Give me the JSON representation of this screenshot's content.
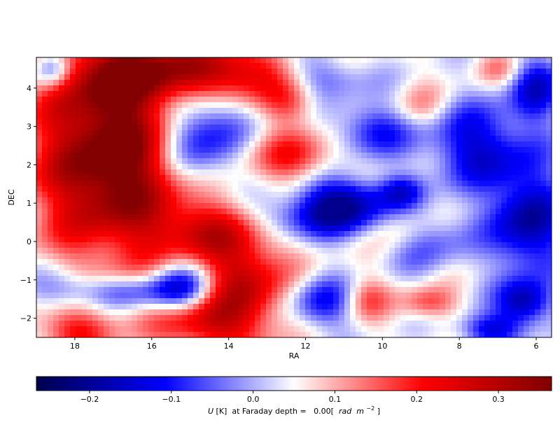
{
  "chart_data": {
    "type": "heatmap",
    "xlabel": "RA",
    "ylabel": "DEC",
    "x_range": [
      19.0,
      5.6
    ],
    "y_range": [
      -2.5,
      4.8
    ],
    "x_ticks": [
      18,
      16,
      14,
      12,
      10,
      8,
      6
    ],
    "y_ticks": [
      -2,
      -1,
      0,
      1,
      2,
      3,
      4
    ],
    "x_tick_labels": [
      "18",
      "16",
      "14",
      "12",
      "10",
      "8",
      "6"
    ],
    "y_tick_labels": [
      "−2",
      "−1",
      "0",
      "1",
      "2",
      "3",
      "4"
    ],
    "colormap": "seismic",
    "value_range": [
      -0.265,
      0.365
    ],
    "colorbar_ticks": [
      -0.2,
      -0.1,
      0.0,
      0.1,
      0.2,
      0.3
    ],
    "colorbar_tick_labels": [
      "−0.2",
      "−0.1",
      "0.0",
      "0.1",
      "0.2",
      "0.3"
    ],
    "colorbar_label": {
      "prefix": "U",
      "unit": "[K]",
      "middle": " at Faraday depth =   0.00[ ",
      "rad": "rad",
      "m": " m",
      "exp": "−2",
      "suffix": "]"
    },
    "field_blobs": [
      {
        "ra": 17.0,
        "dec": 2.2,
        "amp": 0.42,
        "sra": 1.4,
        "sdec": 1.8
      },
      {
        "ra": 16.0,
        "dec": 4.4,
        "amp": 0.25,
        "sra": 1.6,
        "sdec": 0.6
      },
      {
        "ra": 13.8,
        "dec": 4.4,
        "amp": 0.2,
        "sra": 1.0,
        "sdec": 0.5
      },
      {
        "ra": 14.6,
        "dec": 0.3,
        "amp": 0.18,
        "sra": 1.0,
        "sdec": 0.6
      },
      {
        "ra": 13.6,
        "dec": -1.2,
        "amp": 0.26,
        "sra": 0.8,
        "sdec": 1.0
      },
      {
        "ra": 14.8,
        "dec": -2.1,
        "amp": 0.2,
        "sra": 0.8,
        "sdec": 0.5
      },
      {
        "ra": 12.3,
        "dec": 2.2,
        "amp": 0.16,
        "sra": 0.9,
        "sdec": 0.5
      },
      {
        "ra": 12.4,
        "dec": 3.6,
        "amp": 0.12,
        "sra": 0.5,
        "sdec": 0.4
      },
      {
        "ra": 18.0,
        "dec": -2.3,
        "amp": 0.16,
        "sra": 0.8,
        "sdec": 0.4
      },
      {
        "ra": 9.5,
        "dec": 0.3,
        "amp": 0.08,
        "sra": 0.5,
        "sdec": 0.4
      },
      {
        "ra": 10.4,
        "dec": -1.5,
        "amp": 0.12,
        "sra": 0.4,
        "sdec": 0.4
      },
      {
        "ra": 8.8,
        "dec": -1.6,
        "amp": 0.14,
        "sra": 0.5,
        "sdec": 0.3
      },
      {
        "ra": 9.0,
        "dec": 3.5,
        "amp": 0.08,
        "sra": 0.5,
        "sdec": 0.4
      },
      {
        "ra": 7.0,
        "dec": 4.5,
        "amp": 0.08,
        "sra": 0.4,
        "sdec": 0.3
      },
      {
        "ra": 14.8,
        "dec": 2.8,
        "amp": -0.28,
        "sra": 0.8,
        "sdec": 1.0
      },
      {
        "ra": 11.0,
        "dec": 1.0,
        "amp": -0.3,
        "sra": 0.8,
        "sdec": 0.5
      },
      {
        "ra": 12.3,
        "dec": 0.6,
        "amp": -0.14,
        "sra": 0.9,
        "sdec": 0.4
      },
      {
        "ra": 18.6,
        "dec": 4.5,
        "amp": -0.22,
        "sra": 0.35,
        "sdec": 0.35
      },
      {
        "ra": 10.3,
        "dec": 2.9,
        "amp": -0.18,
        "sra": 0.7,
        "sdec": 0.5
      },
      {
        "ra": 11.5,
        "dec": 4.3,
        "amp": -0.12,
        "sra": 0.8,
        "sdec": 0.4
      },
      {
        "ra": 7.5,
        "dec": 2.5,
        "amp": -0.22,
        "sra": 1.0,
        "sdec": 0.8
      },
      {
        "ra": 6.0,
        "dec": 4.0,
        "amp": -0.2,
        "sra": 0.5,
        "sdec": 0.6
      },
      {
        "ra": 6.2,
        "dec": 0.5,
        "amp": -0.28,
        "sra": 0.7,
        "sdec": 1.0
      },
      {
        "ra": 6.3,
        "dec": -1.6,
        "amp": -0.25,
        "sra": 0.5,
        "sdec": 0.4
      },
      {
        "ra": 16.5,
        "dec": -1.3,
        "amp": -0.14,
        "sra": 1.2,
        "sdec": 0.3
      },
      {
        "ra": 15.2,
        "dec": -1.2,
        "amp": -0.2,
        "sra": 0.6,
        "sdec": 0.5
      },
      {
        "ra": 18.3,
        "dec": -1.2,
        "amp": -0.1,
        "sra": 0.6,
        "sdec": 0.4
      },
      {
        "ra": 11.6,
        "dec": -1.6,
        "amp": -0.18,
        "sra": 0.6,
        "sdec": 0.5
      },
      {
        "ra": 8.8,
        "dec": 0.0,
        "amp": -0.12,
        "sra": 0.8,
        "sdec": 0.6
      },
      {
        "ra": 9.5,
        "dec": 1.3,
        "amp": -0.15,
        "sra": 0.4,
        "sdec": 0.3
      },
      {
        "ra": 7.2,
        "dec": -2.3,
        "amp": -0.2,
        "sra": 0.6,
        "sdec": 0.3
      }
    ]
  }
}
